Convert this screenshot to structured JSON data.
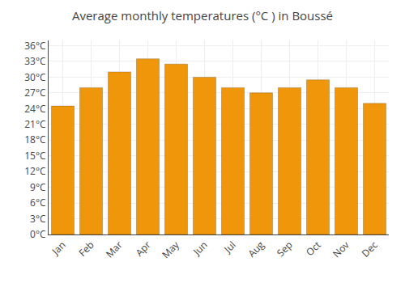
{
  "chart_data": {
    "type": "bar",
    "title": "Average monthly temperatures (°C ) in Boussé",
    "categories": [
      "Jan",
      "Feb",
      "Mar",
      "Apr",
      "May",
      "Jun",
      "Jul",
      "Aug",
      "Sep",
      "Oct",
      "Nov",
      "Dec"
    ],
    "values": [
      24.5,
      28.0,
      31.0,
      33.5,
      32.5,
      30.0,
      28.0,
      27.0,
      28.0,
      29.5,
      28.0,
      25.0
    ],
    "color": "#F0960A",
    "ylim": [
      0,
      37
    ],
    "yticks": [
      {
        "value": 0,
        "label": "0°C"
      },
      {
        "value": 3,
        "label": "3°C"
      },
      {
        "value": 6,
        "label": "6°C"
      },
      {
        "value": 9,
        "label": "9°C"
      },
      {
        "value": 12,
        "label": "12°C"
      },
      {
        "value": 15,
        "label": "15°C"
      },
      {
        "value": 18,
        "label": "18°C"
      },
      {
        "value": 21,
        "label": "21°C"
      },
      {
        "value": 24,
        "label": "24°C"
      },
      {
        "value": 27,
        "label": "27°C"
      },
      {
        "value": 30,
        "label": "30°C"
      },
      {
        "value": 33,
        "label": "33°C"
      },
      {
        "value": 36,
        "label": "36°C"
      }
    ],
    "grid": true
  }
}
